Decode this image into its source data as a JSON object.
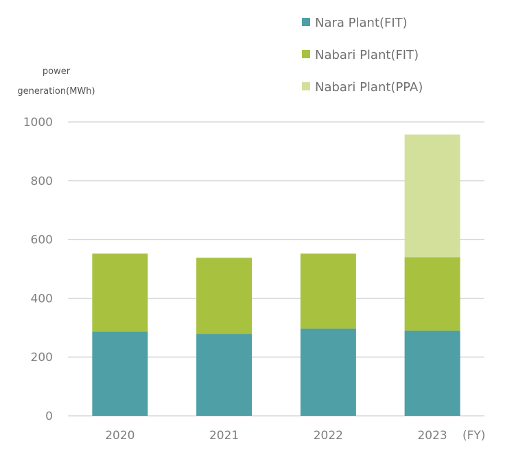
{
  "chart_data": {
    "type": "bar",
    "stacked": true,
    "categories": [
      "2020",
      "2021",
      "2022",
      "2023"
    ],
    "series": [
      {
        "name": "Nara Plant(FIT)",
        "values": [
          287,
          279,
          297,
          290
        ],
        "color": "#4f9fa6"
      },
      {
        "name": "Nabari Plant(FIT)",
        "values": [
          265,
          259,
          255,
          250
        ],
        "color": "#a8c23f"
      },
      {
        "name": "Nabari Plant(PPA)",
        "values": [
          0,
          0,
          0,
          417
        ],
        "color": "#d3e09c"
      }
    ],
    "ylabel_line1": "power",
    "ylabel_line2": "generation(MWh)",
    "xlabel": "(FY)",
    "ylim": [
      0,
      1000
    ],
    "yticks": [
      0,
      200,
      400,
      600,
      800,
      1000
    ],
    "grid": true,
    "gridline_color": "#d9d9d9",
    "legend_position": "top-right"
  }
}
